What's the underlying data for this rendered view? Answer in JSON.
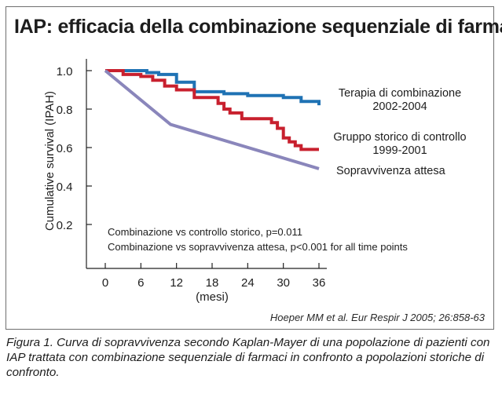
{
  "title": "IAP: efficacia della combinazione sequenziale di farmaci",
  "caption": "Figura 1. Curva di sopravvivenza secondo Kaplan-Mayer di una popolazione di pazienti con IAP trattata con combinazione sequenziale di farmaci in confronto a popolazioni storiche di confronto.",
  "citation": "Hoeper MM et al. Eur Respir J 2005; 26:858-63",
  "chart_data": {
    "type": "line",
    "title": "IAP: efficacia della combinazione sequenziale di farmaci",
    "xlabel": "(mesi)",
    "ylabel": "Cumulative survival (IPAH)",
    "xlim": [
      0,
      36
    ],
    "ylim": [
      0.1,
      1.0
    ],
    "x_ticks": [
      0,
      6,
      12,
      18,
      24,
      30,
      36
    ],
    "y_ticks": [
      "0.2",
      "0.4",
      "0.6",
      "0.8",
      "1.0"
    ],
    "grid": false,
    "annotations": [
      "Combinazione vs controllo storico, p=0.011",
      "Combinazione vs sopravvivenza attesa, p<0.001 for all time points"
    ],
    "series": [
      {
        "name_lines": [
          "Terapia di combinazione",
          "2002-2004"
        ],
        "color": "#1f72b4",
        "style": "step",
        "points": [
          [
            0,
            1.0
          ],
          [
            3,
            1.0
          ],
          [
            7,
            1.0
          ],
          [
            7,
            0.99
          ],
          [
            9,
            0.99
          ],
          [
            9,
            0.98
          ],
          [
            12,
            0.98
          ],
          [
            12,
            0.94
          ],
          [
            15,
            0.94
          ],
          [
            15,
            0.89
          ],
          [
            20,
            0.89
          ],
          [
            20,
            0.88
          ],
          [
            24,
            0.88
          ],
          [
            24,
            0.87
          ],
          [
            30,
            0.87
          ],
          [
            30,
            0.86
          ],
          [
            33,
            0.86
          ],
          [
            33,
            0.84
          ],
          [
            36,
            0.84
          ],
          [
            36,
            0.82
          ]
        ]
      },
      {
        "name_lines": [
          "Gruppo storico di controllo",
          "1999-2001"
        ],
        "color": "#c8202e",
        "style": "step",
        "points": [
          [
            0,
            1.0
          ],
          [
            3,
            1.0
          ],
          [
            3,
            0.98
          ],
          [
            6,
            0.98
          ],
          [
            6,
            0.97
          ],
          [
            8,
            0.97
          ],
          [
            8,
            0.95
          ],
          [
            10,
            0.95
          ],
          [
            10,
            0.92
          ],
          [
            12,
            0.92
          ],
          [
            12,
            0.9
          ],
          [
            15,
            0.9
          ],
          [
            15,
            0.86
          ],
          [
            19,
            0.86
          ],
          [
            19,
            0.83
          ],
          [
            20,
            0.83
          ],
          [
            20,
            0.8
          ],
          [
            21,
            0.8
          ],
          [
            21,
            0.78
          ],
          [
            23,
            0.78
          ],
          [
            23,
            0.75
          ],
          [
            28,
            0.75
          ],
          [
            28,
            0.73
          ],
          [
            29,
            0.73
          ],
          [
            29,
            0.7
          ],
          [
            30,
            0.7
          ],
          [
            30,
            0.65
          ],
          [
            31,
            0.65
          ],
          [
            31,
            0.63
          ],
          [
            32,
            0.63
          ],
          [
            32,
            0.61
          ],
          [
            33,
            0.61
          ],
          [
            33,
            0.59
          ],
          [
            36,
            0.59
          ]
        ]
      },
      {
        "name_lines": [
          "Sopravvivenza attesa"
        ],
        "color": "#8a86bb",
        "style": "linear",
        "points": [
          [
            0,
            1.0
          ],
          [
            11,
            0.72
          ],
          [
            36,
            0.49
          ]
        ]
      }
    ]
  }
}
